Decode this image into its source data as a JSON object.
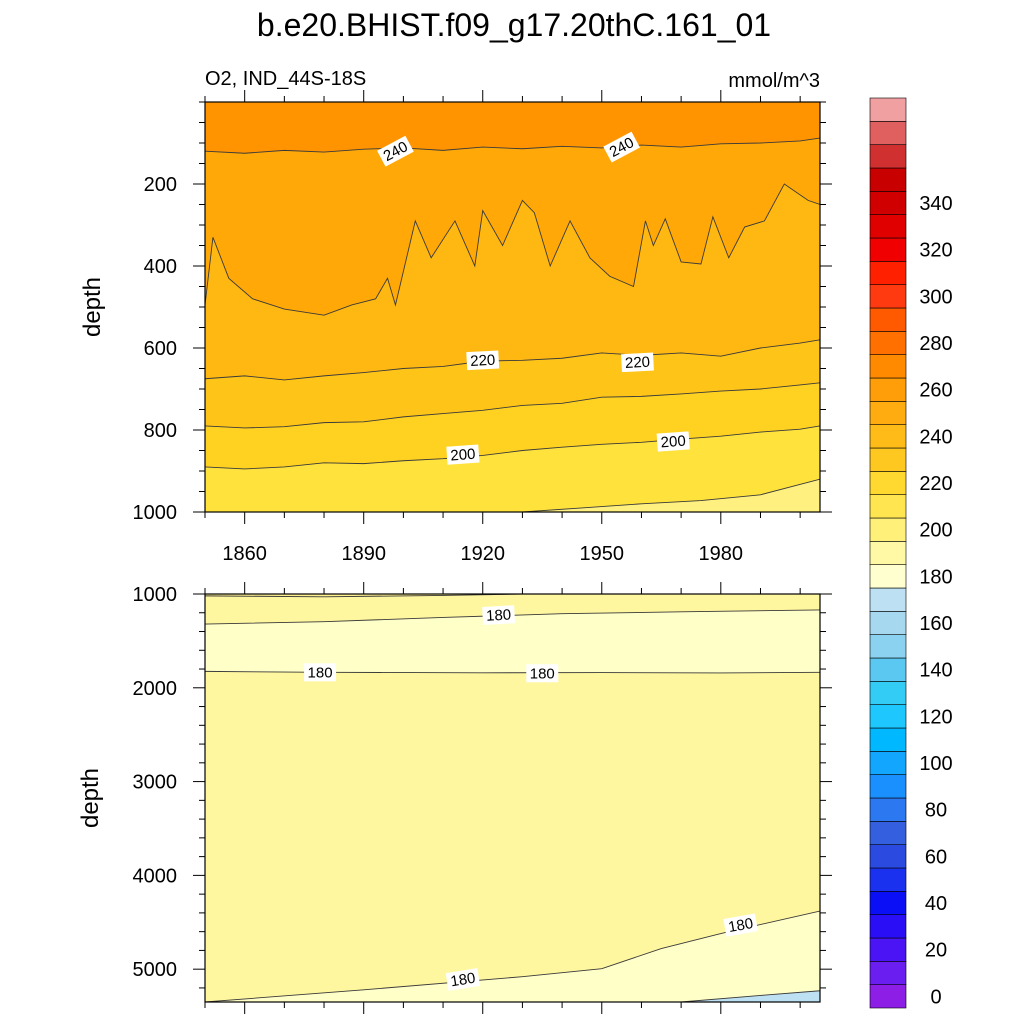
{
  "title": "b.e20.BHIST.f09_g17.20thC.161_01",
  "variable_label": "O2, IND_44S-18S",
  "units_label": "mmol/m^3",
  "colorbar": {
    "labels": [
      "0",
      "20",
      "40",
      "60",
      "80",
      "100",
      "120",
      "140",
      "160",
      "180",
      "200",
      "220",
      "240",
      "260",
      "280",
      "300",
      "320",
      "340"
    ],
    "levels_min": -5,
    "levels_step": 10,
    "colors": [
      "#8c1ee6",
      "#6a1ef0",
      "#4a14f5",
      "#2a0ef5",
      "#0a0ff5",
      "#1a32f0",
      "#2a4ae0",
      "#3460e0",
      "#2c78f0",
      "#1a90ff",
      "#12a6ff",
      "#00b8ff",
      "#1ec8ff",
      "#33ccf5",
      "#5ac8f0",
      "#8ad2f0",
      "#a6d8f0",
      "#bde0f2",
      "#ffffd0",
      "#fff8a5",
      "#fff07a",
      "#ffe650",
      "#ffd830",
      "#ffc820",
      "#ffbc18",
      "#ffac10",
      "#ff9e08",
      "#ff8a00",
      "#ff7000",
      "#ff5a00",
      "#ff3a10",
      "#ff2000",
      "#f00000",
      "#e00000",
      "#d00000",
      "#c80000",
      "#d03030",
      "#e06060",
      "#f0a0a0"
    ]
  },
  "chart_data": [
    {
      "type": "contour",
      "panel": "upper",
      "title": "b.e20.BHIST.f09_g17.20thC.161_01",
      "subtitle_left": "O2, IND_44S-18S",
      "subtitle_right": "mmol/m^3",
      "xlabel": "",
      "ylabel": "depth",
      "xlim": [
        1850,
        2005
      ],
      "ylim": [
        0,
        1000
      ],
      "y_inverted": true,
      "x_ticks": [
        1860,
        1890,
        1920,
        1950,
        1980
      ],
      "x_tick_labels": [
        "1860",
        "1890",
        "1920",
        "1950",
        "1980"
      ],
      "y_ticks": [
        200,
        400,
        600,
        800,
        1000
      ],
      "y_tick_labels": [
        "200",
        "400",
        "600",
        "800",
        "1000"
      ],
      "bands": [
        {
          "value": 245,
          "color": "#ff9400"
        },
        {
          "value": 235,
          "color": "#ffa808"
        },
        {
          "value": 225,
          "color": "#ffb812"
        },
        {
          "value": 215,
          "color": "#ffc418"
        },
        {
          "value": 205,
          "color": "#ffd222"
        },
        {
          "value": 195,
          "color": "#ffe23c"
        },
        {
          "value": 185,
          "color": "#fff080"
        },
        {
          "value": 175,
          "color": "#fffcc0"
        }
      ],
      "contour_lines": [
        {
          "value": 240,
          "points": [
            [
              1850,
              120
            ],
            [
              1860,
              125
            ],
            [
              1870,
              118
            ],
            [
              1880,
              122
            ],
            [
              1890,
              115
            ],
            [
              1900,
              112
            ],
            [
              1910,
              118
            ],
            [
              1920,
              110
            ],
            [
              1930,
              114
            ],
            [
              1940,
              108
            ],
            [
              1950,
              112
            ],
            [
              1960,
              105
            ],
            [
              1970,
              110
            ],
            [
              1980,
              102
            ],
            [
              1990,
              100
            ],
            [
              2000,
              95
            ],
            [
              2005,
              88
            ]
          ]
        },
        {
          "value": 230,
          "points": [
            [
              1850,
              495
            ],
            [
              1852,
              330
            ],
            [
              1856,
              430
            ],
            [
              1862,
              480
            ],
            [
              1870,
              505
            ],
            [
              1880,
              520
            ],
            [
              1887,
              495
            ],
            [
              1893,
              480
            ],
            [
              1896,
              430
            ],
            [
              1898,
              495
            ],
            [
              1903,
              290
            ],
            [
              1907,
              380
            ],
            [
              1913,
              290
            ],
            [
              1918,
              400
            ],
            [
              1920,
              265
            ],
            [
              1925,
              350
            ],
            [
              1930,
              240
            ],
            [
              1933,
              270
            ],
            [
              1937,
              400
            ],
            [
              1942,
              290
            ],
            [
              1947,
              380
            ],
            [
              1952,
              425
            ],
            [
              1958,
              450
            ],
            [
              1961,
              290
            ],
            [
              1963,
              350
            ],
            [
              1966,
              285
            ],
            [
              1970,
              390
            ],
            [
              1975,
              395
            ],
            [
              1978,
              280
            ],
            [
              1982,
              380
            ],
            [
              1986,
              305
            ],
            [
              1991,
              290
            ],
            [
              1996,
              200
            ],
            [
              2002,
              240
            ],
            [
              2005,
              250
            ]
          ]
        },
        {
          "value": 220,
          "points": [
            [
              1850,
              675
            ],
            [
              1860,
              668
            ],
            [
              1870,
              678
            ],
            [
              1880,
              668
            ],
            [
              1890,
              660
            ],
            [
              1900,
              650
            ],
            [
              1910,
              645
            ],
            [
              1920,
              632
            ],
            [
              1930,
              630
            ],
            [
              1940,
              625
            ],
            [
              1950,
              612
            ],
            [
              1960,
              618
            ],
            [
              1970,
              612
            ],
            [
              1980,
              620
            ],
            [
              1990,
              600
            ],
            [
              2000,
              588
            ],
            [
              2005,
              580
            ]
          ]
        },
        {
          "value": 210,
          "points": [
            [
              1850,
              790
            ],
            [
              1860,
              795
            ],
            [
              1870,
              792
            ],
            [
              1880,
              782
            ],
            [
              1890,
              780
            ],
            [
              1900,
              768
            ],
            [
              1910,
              760
            ],
            [
              1920,
              752
            ],
            [
              1930,
              740
            ],
            [
              1940,
              735
            ],
            [
              1950,
              720
            ],
            [
              1960,
              718
            ],
            [
              1970,
              712
            ],
            [
              1980,
              705
            ],
            [
              1990,
              700
            ],
            [
              2000,
              690
            ],
            [
              2005,
              685
            ]
          ]
        },
        {
          "value": 200,
          "points": [
            [
              1850,
              890
            ],
            [
              1860,
              895
            ],
            [
              1870,
              890
            ],
            [
              1880,
              880
            ],
            [
              1890,
              882
            ],
            [
              1900,
              875
            ],
            [
              1910,
              870
            ],
            [
              1920,
              862
            ],
            [
              1930,
              850
            ],
            [
              1940,
              842
            ],
            [
              1950,
              835
            ],
            [
              1960,
              830
            ],
            [
              1970,
              822
            ],
            [
              1980,
              815
            ],
            [
              1990,
              805
            ],
            [
              2000,
              798
            ],
            [
              2005,
              790
            ]
          ]
        },
        {
          "value": 190,
          "points": [
            [
              1930,
              1000
            ],
            [
              1945,
              990
            ],
            [
              1960,
              980
            ],
            [
              1975,
              972
            ],
            [
              1990,
              958
            ],
            [
              2005,
              920
            ]
          ]
        }
      ],
      "contour_labels": [
        {
          "text": "240",
          "x": 1898,
          "y": 120,
          "angle": -28
        },
        {
          "text": "240",
          "x": 1955,
          "y": 110,
          "angle": -28
        },
        {
          "text": "220",
          "x": 1920,
          "y": 630,
          "angle": -3
        },
        {
          "text": "220",
          "x": 1959,
          "y": 635,
          "angle": -3
        },
        {
          "text": "200",
          "x": 1915,
          "y": 860,
          "angle": -4
        },
        {
          "text": "200",
          "x": 1968,
          "y": 828,
          "angle": -4
        }
      ]
    },
    {
      "type": "contour",
      "panel": "lower",
      "xlabel": "",
      "ylabel": "depth",
      "xlim": [
        1850,
        2005
      ],
      "ylim": [
        1000,
        5350
      ],
      "y_inverted": true,
      "y_ticks": [
        1000,
        2000,
        3000,
        4000,
        5000
      ],
      "y_tick_labels": [
        "1000",
        "2000",
        "3000",
        "4000",
        "5000"
      ],
      "bands": [
        {
          "value": 185,
          "color": "#fff6a0"
        },
        {
          "value": 175,
          "color": "#ffffc8"
        },
        {
          "value": 165,
          "color": "#bde0f2"
        }
      ],
      "contour_lines": [
        {
          "value": 190,
          "points": [
            [
              1850,
              1020
            ],
            [
              1880,
              1030
            ],
            [
              1910,
              1015
            ],
            [
              1925,
              1005
            ],
            [
              1930,
              1000
            ]
          ]
        },
        {
          "value": 180,
          "points": [
            [
              1850,
              1320
            ],
            [
              1880,
              1295
            ],
            [
              1910,
              1250
            ],
            [
              1940,
              1210
            ],
            [
              1970,
              1190
            ],
            [
              2005,
              1170
            ]
          ]
        },
        {
          "value": 180,
          "points": [
            [
              1850,
              1825
            ],
            [
              1880,
              1835
            ],
            [
              1920,
              1840
            ],
            [
              1950,
              1838
            ],
            [
              1980,
              1842
            ],
            [
              2005,
              1835
            ]
          ]
        },
        {
          "value": 180,
          "points": [
            [
              1850,
              5350
            ],
            [
              1890,
              5220
            ],
            [
              1930,
              5080
            ],
            [
              1950,
              4995
            ],
            [
              1965,
              4780
            ],
            [
              1980,
              4620
            ],
            [
              2005,
              4380
            ]
          ]
        },
        {
          "value": 170,
          "points": [
            [
              1970,
              5350
            ],
            [
              1990,
              5280
            ],
            [
              2005,
              5230
            ]
          ]
        }
      ],
      "contour_labels": [
        {
          "text": "180",
          "x": 1924,
          "y": 1225,
          "angle": -3
        },
        {
          "text": "180",
          "x": 1879,
          "y": 1835,
          "angle": 0
        },
        {
          "text": "180",
          "x": 1935,
          "y": 1845,
          "angle": 0
        },
        {
          "text": "180",
          "x": 1985,
          "y": 4530,
          "angle": -10
        },
        {
          "text": "180",
          "x": 1915,
          "y": 5110,
          "angle": -9
        }
      ]
    }
  ]
}
